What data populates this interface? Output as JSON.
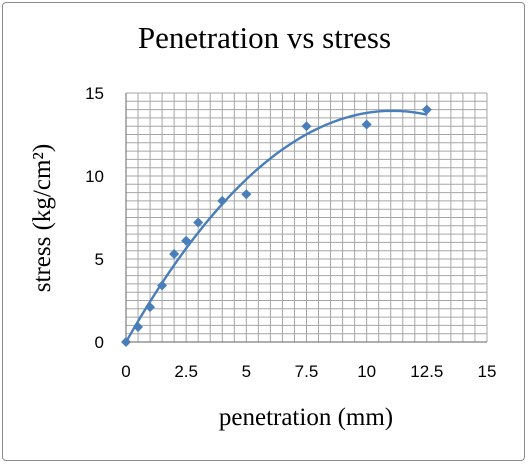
{
  "chart_data": {
    "type": "scatter",
    "title": "Penetration vs stress",
    "xlabel": "penetration (mm)",
    "ylabel": "stress (kg/cm²)",
    "xlim": [
      0,
      15
    ],
    "ylim": [
      0,
      15
    ],
    "x_ticks": [
      0,
      2.5,
      5,
      7.5,
      10,
      12.5,
      15
    ],
    "y_ticks": [
      0,
      5,
      10,
      15
    ],
    "x_tick_labels": [
      "0",
      "2.5",
      "5",
      "7.5",
      "10",
      "12.5",
      "15"
    ],
    "y_tick_labels": [
      "0",
      "5",
      "10",
      "15"
    ],
    "grid": true,
    "minor_grid_step": 0.5,
    "legend": "none",
    "series": [
      {
        "marker": "diamond",
        "color": "#4a7ebb",
        "x": [
          0,
          0.5,
          1,
          1.5,
          2,
          2.5,
          3,
          4,
          5,
          7.5,
          10,
          12.5
        ],
        "y": [
          0,
          0.9,
          2.1,
          3.4,
          5.3,
          6.1,
          7.2,
          8.5,
          8.9,
          13.0,
          13.1,
          14.0
        ]
      }
    ],
    "trendline": {
      "type": "polynomial",
      "color": "#4a7ebb",
      "x_range": [
        0,
        12.5
      ],
      "y_at_key_points": {
        "0": 0,
        "5": 9.8,
        "10": 13.8,
        "12.5": 13.7
      }
    }
  }
}
